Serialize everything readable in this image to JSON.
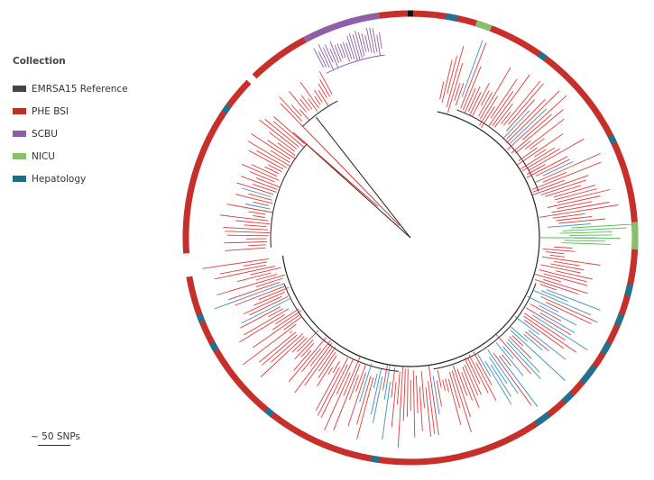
{
  "legend": {
    "title": "Collection",
    "items": [
      {
        "label": "EMRSA15 Reference",
        "color": "#444444"
      },
      {
        "label": "PHE BSI",
        "color": "#b83227"
      },
      {
        "label": "SCBU",
        "color": "#8e5ea8"
      },
      {
        "label": "NICU",
        "color": "#86c06a"
      },
      {
        "label": "Hepatology",
        "color": "#17708a"
      }
    ]
  },
  "scale": {
    "label": "~ 50 SNPs"
  },
  "tree": {
    "layout": "circular",
    "colors": {
      "branch_phe": "#e23b3b",
      "branch_hepatology": "#3b8fc0",
      "branch_scbu": "#8e5ea8",
      "branch_nicu": "#4cc04c",
      "branch_internal": "#222222",
      "ring_phe": "#c7302a",
      "ring_scbu": "#8e5ea8",
      "ring_nicu": "#86c06a",
      "ring_hepatology": "#1f7391",
      "ring_reference": "#111111"
    }
  }
}
